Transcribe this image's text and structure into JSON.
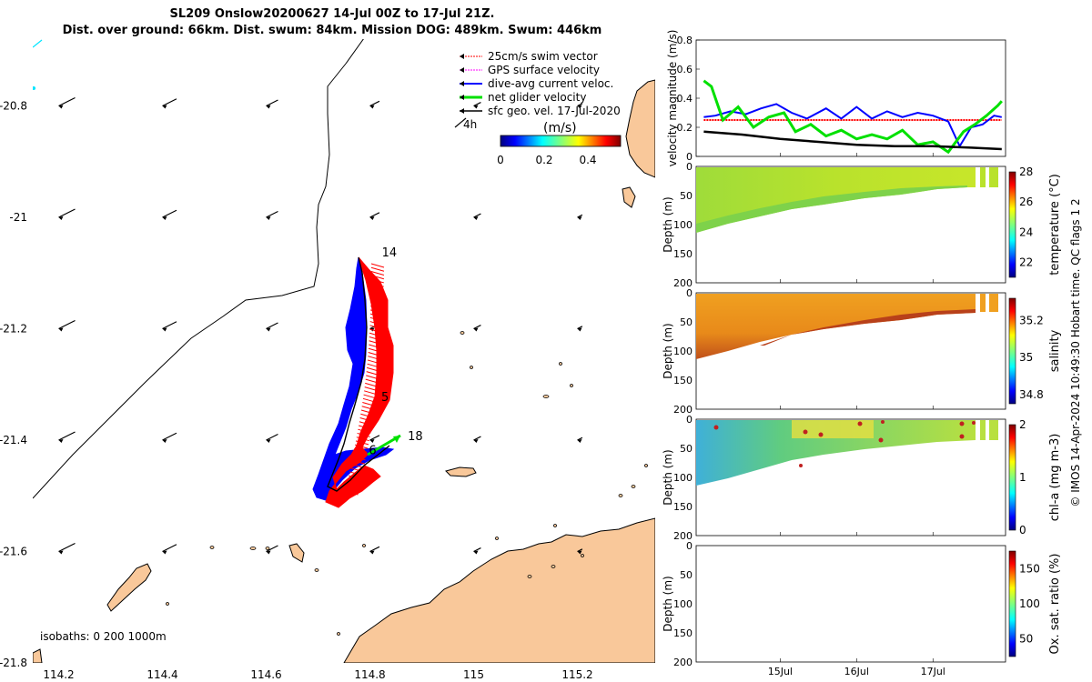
{
  "title": {
    "line1": "SL209 Onslow20200627 14-Jul 00Z to 17-Jul 21Z.",
    "line2": "Dist. over ground: 66km. Dist. swum: 84km. Mission DOG: 489km. Swum: 446km"
  },
  "colors": {
    "land": "#f9c89a",
    "swim_vector": "#ff0000",
    "gps_velocity": "#ff00ff",
    "dive_avg": "#0000ff",
    "net_glider": "#00e000",
    "sfc_geo": "#000000"
  },
  "map": {
    "xlim": [
      114.15,
      115.35
    ],
    "ylim": [
      -21.8,
      -20.68
    ],
    "xticks": [
      "114.2",
      "114.4",
      "114.6",
      "114.8",
      "115",
      "115.2"
    ],
    "yticks": [
      "-20.8",
      "-21",
      "-21.2",
      "-21.4",
      "-21.6",
      "-21.8"
    ],
    "legend": {
      "items": [
        {
          "label": "25cm/s swim vector",
          "color": "#ff0000"
        },
        {
          "label": "GPS surface velocity",
          "color": "#ff00ff"
        },
        {
          "label": "dive-avg current veloc.",
          "color": "#0000ff"
        },
        {
          "label": "net glider velocity",
          "color": "#00e000"
        },
        {
          "label": "sfc geo. vel. 17-Jul-2020",
          "color": "#000000"
        }
      ],
      "lag": "4h",
      "placement": "top-right"
    },
    "colorbar": {
      "unit": "(m/s)",
      "ticks": [
        "0",
        "0.2",
        "0.4"
      ],
      "range": [
        0,
        0.55
      ]
    },
    "isobaths": "isobaths: 0   200  1000m",
    "day_labels": [
      {
        "text": "14",
        "lon": 114.823,
        "lat": -21.07
      },
      {
        "text": "5",
        "lon": 114.822,
        "lat": -21.33
      },
      {
        "text": "18",
        "lon": 114.873,
        "lat": -21.4
      },
      {
        "text": "6",
        "lon": 114.798,
        "lat": -21.425
      }
    ]
  },
  "velocity_panel": {
    "ylabel": "velocity magnitude (m/s)",
    "ylim": [
      0,
      0.8
    ],
    "yticks": [
      "0",
      "0.2",
      "0.4",
      "0.6",
      "0.8"
    ],
    "series": [
      {
        "name": "swim speed",
        "color": "#ff0000",
        "x": [
          0,
          3.9
        ],
        "y": [
          0.25,
          0.25
        ]
      },
      {
        "name": "dive-avg current",
        "color": "#0000ff",
        "x": [
          0,
          0.15,
          0.35,
          0.55,
          0.75,
          0.95,
          1.15,
          1.35,
          1.6,
          1.8,
          2.0,
          2.2,
          2.4,
          2.6,
          2.8,
          3.0,
          3.2,
          3.35,
          3.5,
          3.65,
          3.8,
          3.9
        ],
        "y": [
          0.27,
          0.28,
          0.31,
          0.29,
          0.33,
          0.36,
          0.3,
          0.26,
          0.33,
          0.26,
          0.34,
          0.26,
          0.31,
          0.27,
          0.3,
          0.28,
          0.24,
          0.07,
          0.2,
          0.22,
          0.28,
          0.27
        ]
      },
      {
        "name": "net glider velocity",
        "color": "#00e000",
        "x": [
          0,
          0.1,
          0.25,
          0.45,
          0.65,
          0.85,
          1.05,
          1.2,
          1.4,
          1.6,
          1.8,
          2.0,
          2.2,
          2.4,
          2.6,
          2.8,
          3.0,
          3.2,
          3.4,
          3.55,
          3.7,
          3.85,
          3.9
        ],
        "y": [
          0.52,
          0.48,
          0.25,
          0.34,
          0.2,
          0.27,
          0.3,
          0.17,
          0.22,
          0.14,
          0.18,
          0.12,
          0.15,
          0.12,
          0.18,
          0.08,
          0.1,
          0.03,
          0.17,
          0.22,
          0.28,
          0.35,
          0.38
        ]
      },
      {
        "name": "sfc geo vel",
        "color": "#000000",
        "x": [
          0,
          0.5,
          1.0,
          1.5,
          2.0,
          2.5,
          3.0,
          3.5,
          3.9
        ],
        "y": [
          0.17,
          0.15,
          0.12,
          0.1,
          0.08,
          0.07,
          0.07,
          0.06,
          0.05
        ]
      }
    ]
  },
  "profile_panels": [
    {
      "name": "temperature",
      "cblabel": "temperature (°C)",
      "cbticks": [
        "22",
        "24",
        "26",
        "28"
      ],
      "ylabel": "Depth (m)",
      "yticks": [
        "0",
        "50",
        "100",
        "150",
        "200"
      ]
    },
    {
      "name": "salinity",
      "cblabel": "salinity",
      "cbticks": [
        "34.8",
        "35",
        "35.2"
      ],
      "ylabel": "Depth (m)",
      "yticks": [
        "0",
        "50",
        "100",
        "150",
        "200"
      ]
    },
    {
      "name": "chl-a",
      "cblabel": "chl-a (mg m-3)",
      "cbticks": [
        "0",
        "1",
        "2"
      ],
      "ylabel": "Depth (m)",
      "yticks": [
        "0",
        "50",
        "100",
        "150",
        "200"
      ]
    },
    {
      "name": "oxygen",
      "cblabel": "Ox. sat. ratio (%)",
      "cbticks": [
        "50",
        "100",
        "150"
      ],
      "ylabel": "Depth (m)",
      "yticks": [
        "0",
        "50",
        "100",
        "150",
        "200"
      ]
    }
  ],
  "time_axis": {
    "labels": [
      "15Jul",
      "16Jul",
      "17Jul"
    ],
    "positions_days": [
      1,
      2,
      3
    ],
    "range_days": [
      -0.1,
      3.95
    ]
  },
  "credit": "© IMOS 14-Apr-2024 10:49:30 Hobart time. QC flags 1  2"
}
